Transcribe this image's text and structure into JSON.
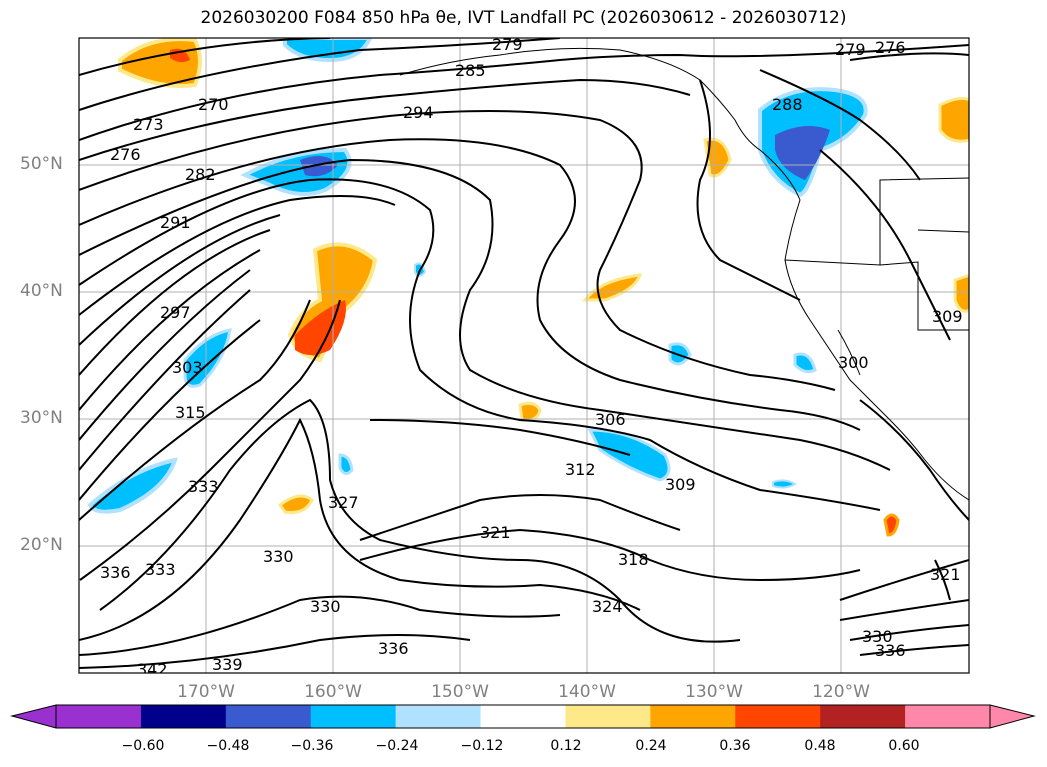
{
  "title": "2026030200 F084 850 hPa θe, IVT Landfall PC (2026030612 - 2026030712)",
  "lat_ticks": [
    "50°N",
    "40°N",
    "30°N",
    "20°N"
  ],
  "lon_ticks": [
    "170°W",
    "160°W",
    "150°W",
    "140°W",
    "130°W",
    "120°W"
  ],
  "contour_labels": [
    "279",
    "285",
    "270",
    "273",
    "276",
    "282",
    "294",
    "279",
    "276",
    "288",
    "291",
    "297",
    "303",
    "315",
    "333",
    "336",
    "333",
    "330",
    "327",
    "342",
    "339",
    "330",
    "336",
    "321",
    "306",
    "312",
    "309",
    "318",
    "324",
    "300",
    "309",
    "321",
    "330",
    "336"
  ],
  "colorbar": {
    "ticks": [
      "−0.60",
      "−0.48",
      "−0.36",
      "−0.24",
      "−0.12",
      "0.12",
      "0.24",
      "0.36",
      "0.48",
      "0.60"
    ],
    "colors": {
      "under": "#9b30d0",
      "bins": [
        "#00008b",
        "#3a5bd0",
        "#00bfff",
        "#b0e2ff",
        "#ffffff",
        "#fde98a",
        "#ffa500",
        "#ff4500",
        "#b22222"
      ],
      "over": "#ff88aa"
    }
  },
  "shading_colors": {
    "neg_strong": "#3a5bd0",
    "neg_mid": "#00bfff",
    "neg_weak": "#b0e2ff",
    "pos_weak": "#fde98a",
    "pos_mid": "#ffa500",
    "pos_strong": "#ff4500"
  }
}
